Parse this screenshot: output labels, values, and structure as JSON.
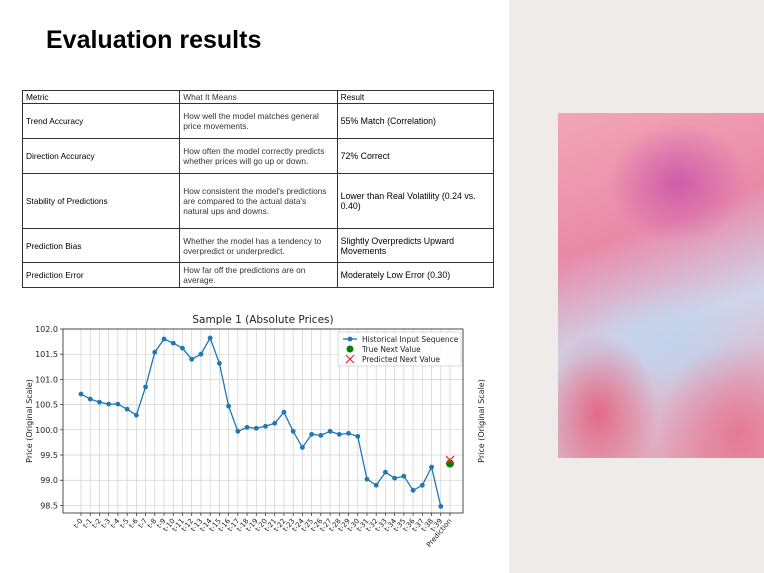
{
  "title": "Evaluation results",
  "table": {
    "header": [
      "Metric",
      "What It Means",
      "Result"
    ],
    "rows": [
      [
        "Trend Accuracy",
        "How well the model matches general price movements.",
        "55% Match (Correlation)"
      ],
      [
        "Direction Accuracy",
        "How often the model correctly predicts whether prices will go up or down.",
        "72% Correct"
      ],
      [
        "Stability of Predictions",
        "How consistent the model's predictions are compared to the actual data's natural ups and downs.",
        "Lower than Real Volatility (0.24 vs. 0.40)"
      ],
      [
        "Prediction Bias",
        "Whether the model has a tendency to overpredict or underpredict.",
        "Slightly Overpredicts Upward Movements"
      ],
      [
        "Prediction Error",
        "How far off the predictions are on average.",
        "Moderately Low Error (0.30)"
      ]
    ]
  },
  "chart_data": {
    "type": "line",
    "title": "Sample 1 (Absolute Prices)",
    "y_label": "Price (Original Scale)",
    "y2_label": "Price (Original Scale)",
    "categories": [
      "t-0",
      "t-1",
      "t-2",
      "t-3",
      "t-4",
      "t-5",
      "t-6",
      "t-7",
      "t-8",
      "t-9",
      "t-10",
      "t-11",
      "t-12",
      "t-13",
      "t-14",
      "t-15",
      "t-16",
      "t-17",
      "t-18",
      "t-19",
      "t-20",
      "t-21",
      "t-22",
      "t-23",
      "t-24",
      "t-25",
      "t-26",
      "t-27",
      "t-28",
      "t-29",
      "t-30",
      "t-31",
      "t-32",
      "t-33",
      "t-34",
      "t-35",
      "t-36",
      "t-37",
      "t-38",
      "t-39",
      "Prediction"
    ],
    "series": [
      {
        "name": "Historical Input Sequence",
        "color": "#1f77b4",
        "marker": "circle",
        "values": [
          100.71,
          100.61,
          100.55,
          100.51,
          100.51,
          100.41,
          100.29,
          100.85,
          101.54,
          101.8,
          101.72,
          101.62,
          101.4,
          101.5,
          101.82,
          101.32,
          100.47,
          99.97,
          100.05,
          100.03,
          100.07,
          100.13,
          100.35,
          99.97,
          99.65,
          99.91,
          99.89,
          99.97,
          99.91,
          99.93,
          99.87,
          99.02,
          98.9,
          99.16,
          99.04,
          99.08,
          98.8,
          98.9,
          99.26,
          98.48,
          null
        ]
      },
      {
        "name": "True Next Value",
        "color": "#008000",
        "marker": "circle",
        "values": [
          null,
          null,
          null,
          null,
          null,
          null,
          null,
          null,
          null,
          null,
          null,
          null,
          null,
          null,
          null,
          null,
          null,
          null,
          null,
          null,
          null,
          null,
          null,
          null,
          null,
          null,
          null,
          null,
          null,
          null,
          null,
          null,
          null,
          null,
          null,
          null,
          null,
          null,
          null,
          null,
          99.33
        ]
      },
      {
        "name": "Predicted Next Value",
        "color": "#e8262b",
        "marker": "x",
        "values": [
          null,
          null,
          null,
          null,
          null,
          null,
          null,
          null,
          null,
          null,
          null,
          null,
          null,
          null,
          null,
          null,
          null,
          null,
          null,
          null,
          null,
          null,
          null,
          null,
          null,
          null,
          null,
          null,
          null,
          null,
          null,
          null,
          null,
          null,
          null,
          null,
          null,
          null,
          null,
          null,
          99.4
        ]
      }
    ],
    "ylim": [
      98.35,
      102.0
    ],
    "yticks": [
      98.5,
      {
        "value": 99,
        "label": "99.0"
      },
      99.5,
      {
        "value": 100,
        "label": "100.0"
      },
      100.5,
      {
        "value": 101,
        "label": "101.0"
      },
      101.5,
      {
        "value": 102,
        "label": "102.0"
      }
    ],
    "grid": true,
    "legend": "upper right"
  }
}
